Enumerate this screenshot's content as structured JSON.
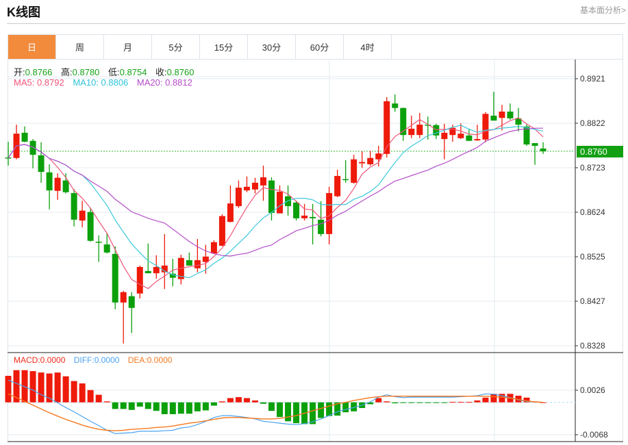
{
  "header": {
    "title": "K线图",
    "link": "基本面分析>"
  },
  "tabs": [
    {
      "label": "日",
      "active": true
    },
    {
      "label": "周"
    },
    {
      "label": "月"
    },
    {
      "label": "5分"
    },
    {
      "label": "15分"
    },
    {
      "label": "30分"
    },
    {
      "label": "60分"
    },
    {
      "label": "4时"
    }
  ],
  "ohlc_info": {
    "open_label": "开:",
    "open": "0.8766",
    "high_label": "高:",
    "high": "0.8780",
    "low_label": "低:",
    "low": "0.8754",
    "close_label": "收:",
    "close": "0.8760"
  },
  "ma_info": {
    "ma5": "MA5: 0.8792",
    "ma10": "MA10: 0.8806",
    "ma20": "MA20: 0.8812"
  },
  "macd_info": {
    "macd": "MACD:0.0000",
    "diff": "DIFF:0.0000",
    "dea": "DEA:0.0000"
  },
  "current_price": "0.8760",
  "colors": {
    "up": "#ee1a0a",
    "down": "#0ba00b",
    "ma5": "#f0557a",
    "ma10": "#3cc8dc",
    "ma20": "#b44dc8",
    "diff": "#4aa3f0",
    "dea": "#f5781e",
    "accent": "#f28b3c"
  },
  "chart_data": [
    {
      "type": "candlestick",
      "title": "K线图",
      "ylim": [
        0.8328,
        0.8921
      ],
      "y_ticks": [
        "0.8921",
        "0.8822",
        "0.8723",
        "0.8624",
        "0.8525",
        "0.8427",
        "0.8328"
      ],
      "ohlc": [
        [
          0.8746,
          0.8781,
          0.8728,
          0.8745
        ],
        [
          0.8745,
          0.8819,
          0.8742,
          0.8799
        ],
        [
          0.8801,
          0.8815,
          0.878,
          0.8781
        ],
        [
          0.8783,
          0.8787,
          0.8722,
          0.8752
        ],
        [
          0.8751,
          0.878,
          0.869,
          0.8714
        ],
        [
          0.8713,
          0.8731,
          0.8631,
          0.8673
        ],
        [
          0.8672,
          0.8711,
          0.8652,
          0.8701
        ],
        [
          0.8695,
          0.8711,
          0.8666,
          0.8669
        ],
        [
          0.8667,
          0.8676,
          0.8593,
          0.8608
        ],
        [
          0.8606,
          0.865,
          0.8591,
          0.8628
        ],
        [
          0.8625,
          0.8634,
          0.8559,
          0.8561
        ],
        [
          0.8559,
          0.8573,
          0.8514,
          0.8558
        ],
        [
          0.8553,
          0.8579,
          0.8533,
          0.8535
        ],
        [
          0.8532,
          0.8549,
          0.8409,
          0.8424
        ],
        [
          0.8424,
          0.845,
          0.8333,
          0.8447
        ],
        [
          0.8438,
          0.8447,
          0.8356,
          0.8412
        ],
        [
          0.8444,
          0.8506,
          0.8433,
          0.8503
        ],
        [
          0.8494,
          0.8555,
          0.8489,
          0.8489
        ],
        [
          0.8489,
          0.8529,
          0.8477,
          0.8503
        ],
        [
          0.8491,
          0.8576,
          0.8454,
          0.8506
        ],
        [
          0.8488,
          0.8521,
          0.846,
          0.8479
        ],
        [
          0.8476,
          0.853,
          0.8464,
          0.8523
        ],
        [
          0.8518,
          0.8535,
          0.8506,
          0.8506
        ],
        [
          0.85,
          0.8565,
          0.8491,
          0.8518
        ],
        [
          0.8514,
          0.8552,
          0.8488,
          0.8526
        ],
        [
          0.8533,
          0.8562,
          0.8533,
          0.8558
        ],
        [
          0.855,
          0.862,
          0.8549,
          0.8616
        ],
        [
          0.8603,
          0.8684,
          0.8602,
          0.8644
        ],
        [
          0.8638,
          0.8695,
          0.8634,
          0.8679
        ],
        [
          0.8673,
          0.8704,
          0.8669,
          0.8681
        ],
        [
          0.8675,
          0.8701,
          0.8666,
          0.869
        ],
        [
          0.8684,
          0.8728,
          0.865,
          0.8702
        ],
        [
          0.8695,
          0.8702,
          0.8606,
          0.8623
        ],
        [
          0.8622,
          0.8684,
          0.8622,
          0.867
        ],
        [
          0.866,
          0.8684,
          0.8617,
          0.8638
        ],
        [
          0.8646,
          0.865,
          0.8606,
          0.8611
        ],
        [
          0.8611,
          0.8643,
          0.8606,
          0.8617
        ],
        [
          0.8614,
          0.8643,
          0.8553,
          0.8611
        ],
        [
          0.8608,
          0.8649,
          0.8571,
          0.8576
        ],
        [
          0.8576,
          0.8681,
          0.8553,
          0.8667
        ],
        [
          0.866,
          0.8719,
          0.8658,
          0.8705
        ],
        [
          0.8698,
          0.874,
          0.869,
          0.8696
        ],
        [
          0.869,
          0.8752,
          0.8688,
          0.8742
        ],
        [
          0.8733,
          0.876,
          0.8723,
          0.8736
        ],
        [
          0.8731,
          0.8761,
          0.8728,
          0.8745
        ],
        [
          0.8742,
          0.8772,
          0.8726,
          0.8755
        ],
        [
          0.8754,
          0.888,
          0.8746,
          0.8871
        ],
        [
          0.8866,
          0.8886,
          0.8848,
          0.8856
        ],
        [
          0.8856,
          0.8857,
          0.8783,
          0.8796
        ],
        [
          0.8796,
          0.8839,
          0.8789,
          0.881
        ],
        [
          0.8796,
          0.8845,
          0.8789,
          0.8819
        ],
        [
          0.8819,
          0.8837,
          0.8786,
          0.8818
        ],
        [
          0.8818,
          0.8821,
          0.8787,
          0.8795
        ],
        [
          0.8787,
          0.8821,
          0.8742,
          0.8801
        ],
        [
          0.8796,
          0.8819,
          0.8781,
          0.8812
        ],
        [
          0.8789,
          0.8822,
          0.8787,
          0.8799
        ],
        [
          0.8795,
          0.881,
          0.8783,
          0.8783
        ],
        [
          0.8784,
          0.8819,
          0.8783,
          0.8787
        ],
        [
          0.8786,
          0.8847,
          0.878,
          0.8843
        ],
        [
          0.8839,
          0.8892,
          0.8828,
          0.8828
        ],
        [
          0.8834,
          0.8863,
          0.8806,
          0.8848
        ],
        [
          0.8848,
          0.8866,
          0.883,
          0.8833
        ],
        [
          0.8833,
          0.8856,
          0.8804,
          0.8819
        ],
        [
          0.8815,
          0.8819,
          0.8772,
          0.8775
        ],
        [
          0.8778,
          0.8778,
          0.873,
          0.8772
        ],
        [
          0.8766,
          0.878,
          0.8754,
          0.876
        ]
      ],
      "ma_periods": [
        5,
        10,
        20
      ]
    },
    {
      "type": "macd",
      "ylim": [
        -0.0078,
        0.0068
      ],
      "y_ticks": [
        "0.0026",
        "-0.0068"
      ],
      "hist": [
        0.0056,
        0.0068,
        0.0068,
        0.0066,
        0.0063,
        0.0061,
        0.0063,
        0.0055,
        0.0045,
        0.004,
        0.0026,
        0.0016,
        0.0002,
        -0.0014,
        -0.0014,
        -0.0016,
        -0.0009,
        -0.0014,
        -0.0018,
        -0.0025,
        -0.0025,
        -0.0024,
        -0.0024,
        -0.0019,
        -0.0017,
        -0.0007,
        0.0002,
        0.0009,
        0.0011,
        0.0009,
        0.0004,
        -0.0003,
        -0.0018,
        -0.0031,
        -0.004,
        -0.0044,
        -0.0046,
        -0.0046,
        -0.0033,
        -0.0029,
        -0.0028,
        -0.0021,
        -0.0019,
        -0.0012,
        -0.0004,
        0.0009,
        0.0002,
        -0.0002,
        -0.0001,
        -0.0001,
        -0.0001,
        -0.0001,
        -0.0001,
        -0.0001,
        0.0001,
        0.0001,
        0.0001,
        0.0004,
        0.001,
        0.0018,
        0.0018,
        0.0018,
        0.0014,
        0.001,
        0.0002,
        0.0
      ],
      "diff": [
        0.0047,
        0.004,
        0.0033,
        0.0026,
        0.0016,
        0.0009,
        -0.0001,
        -0.0011,
        -0.002,
        -0.003,
        -0.004,
        -0.0049,
        -0.0059,
        -0.0066,
        -0.0065,
        -0.0064,
        -0.0061,
        -0.0061,
        -0.0061,
        -0.006,
        -0.0059,
        -0.0054,
        -0.0052,
        -0.0047,
        -0.004,
        -0.0032,
        -0.0028,
        -0.0028,
        -0.003,
        -0.0032,
        -0.0035,
        -0.004,
        -0.0042,
        -0.0044,
        -0.0046,
        -0.0047,
        -0.0045,
        -0.0041,
        -0.0035,
        -0.0028,
        -0.002,
        -0.0015,
        -0.0011,
        -0.0006,
        0.0001,
        0.0011,
        0.0016,
        0.0012,
        0.001,
        0.0011,
        0.0011,
        0.0011,
        0.0011,
        0.0011,
        0.0011,
        0.0012,
        0.0013,
        0.0014,
        0.0018,
        0.0017,
        0.0014,
        0.001,
        0.0005,
        0.0002,
        0.0001,
        0.0
      ],
      "dea": [
        0.0018,
        0.001,
        0.0002,
        -0.0006,
        -0.0014,
        -0.0022,
        -0.0029,
        -0.0036,
        -0.0042,
        -0.0048,
        -0.0053,
        -0.0057,
        -0.0059,
        -0.006,
        -0.0059,
        -0.0057,
        -0.0056,
        -0.0055,
        -0.0053,
        -0.0052,
        -0.005,
        -0.0047,
        -0.0044,
        -0.0042,
        -0.0039,
        -0.0036,
        -0.0033,
        -0.0032,
        -0.0032,
        -0.0033,
        -0.0034,
        -0.0035,
        -0.0035,
        -0.0034,
        -0.0031,
        -0.0028,
        -0.0023,
        -0.0018,
        -0.0013,
        -0.0008,
        -0.0003,
        0.0,
        0.0004,
        0.0007,
        0.001,
        0.0012,
        0.0013,
        0.0013,
        0.0013,
        0.0013,
        0.0013,
        0.0013,
        0.0013,
        0.0013,
        0.0013,
        0.0013,
        0.0013,
        0.0013,
        0.0013,
        0.0012,
        0.0011,
        0.0009,
        0.0006,
        0.0003,
        0.0001,
        0.0
      ]
    }
  ]
}
